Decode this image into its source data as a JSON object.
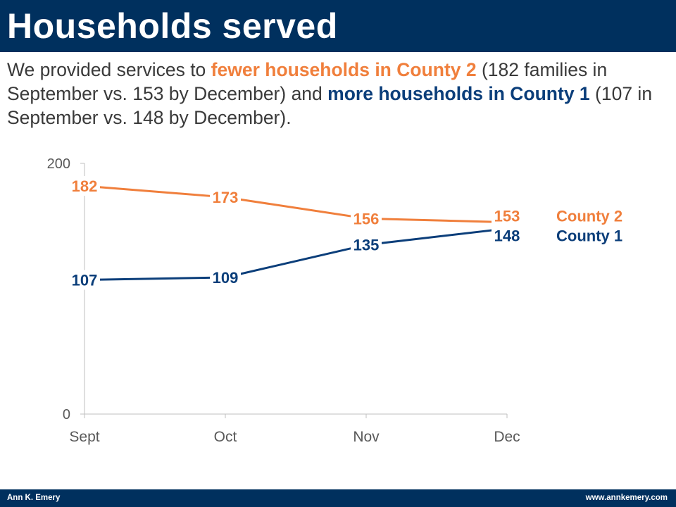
{
  "header": {
    "title": "Households served"
  },
  "subtitle": {
    "part1": "We provided services to ",
    "highlight_county2": "fewer households in County 2",
    "part2": " (182 families in September vs. 153 by December) and ",
    "highlight_county1": "more households in County 1",
    "part3": " (107 in September vs. 148 by December)."
  },
  "colors": {
    "county2": "#f07f3c",
    "county1": "#0b3e7a",
    "axis": "#bfbfbf",
    "tick_text": "#595959",
    "banner": "#00305e"
  },
  "chart_data": {
    "type": "line",
    "categories": [
      "Sept",
      "Oct",
      "Nov",
      "Dec"
    ],
    "yticks": [
      0,
      200
    ],
    "ylim": [
      0,
      200
    ],
    "grid": false,
    "legend": "direct labels at right end of lines",
    "series": [
      {
        "name": "County 2",
        "color": "#f07f3c",
        "values": [
          182,
          173,
          156,
          153
        ]
      },
      {
        "name": "County 1",
        "color": "#0b3e7a",
        "values": [
          107,
          109,
          135,
          148
        ]
      }
    ]
  },
  "footer": {
    "author": "Ann K. Emery",
    "website": "www.annkemery.com"
  }
}
